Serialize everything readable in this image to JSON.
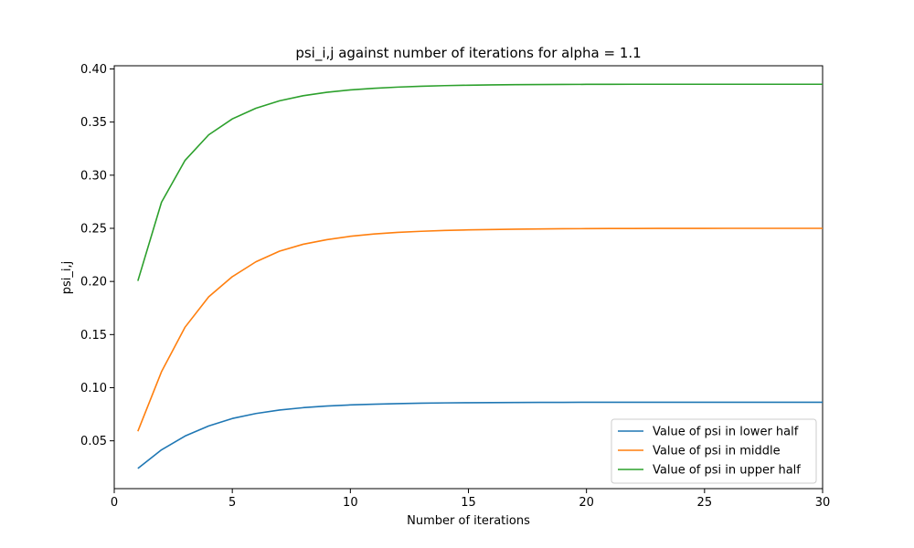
{
  "chart_data": {
    "type": "line",
    "title": "psi_i,j against number of iterations for alpha = 1.1",
    "xlabel": "Number of iterations",
    "ylabel": "psi_i,j",
    "xlim": [
      0,
      30
    ],
    "ylim": [
      0.005,
      0.403
    ],
    "x_ticks": [
      0,
      5,
      10,
      15,
      20,
      25,
      30
    ],
    "y_ticks": [
      0.05,
      0.1,
      0.15,
      0.2,
      0.25,
      0.3,
      0.35,
      0.4
    ],
    "grid": false,
    "legend_position": "lower-right",
    "x": [
      1,
      2,
      3,
      4,
      5,
      6,
      7,
      8,
      9,
      10,
      11,
      12,
      13,
      14,
      15,
      16,
      17,
      18,
      19,
      20,
      21,
      22,
      23,
      24,
      25,
      26,
      27,
      28,
      29,
      30
    ],
    "series": [
      {
        "name": "Value of psi in lower half",
        "color": "#1f77b4",
        "values": [
          0.024,
          0.0415,
          0.0545,
          0.064,
          0.071,
          0.0757,
          0.079,
          0.0812,
          0.0827,
          0.0838,
          0.0845,
          0.085,
          0.0854,
          0.0857,
          0.0859,
          0.086,
          0.0861,
          0.0862,
          0.0862,
          0.0863,
          0.0863,
          0.0863,
          0.0863,
          0.0863,
          0.0863,
          0.0863,
          0.0863,
          0.0863,
          0.0863,
          0.0863
        ]
      },
      {
        "name": "Value of psi in middle",
        "color": "#ff7f0e",
        "values": [
          0.059,
          0.115,
          0.157,
          0.1855,
          0.2045,
          0.2185,
          0.2285,
          0.235,
          0.2393,
          0.2425,
          0.2447,
          0.2462,
          0.2472,
          0.248,
          0.2485,
          0.2489,
          0.2492,
          0.2494,
          0.2496,
          0.2497,
          0.2498,
          0.2498,
          0.2499,
          0.2499,
          0.2499,
          0.25,
          0.25,
          0.25,
          0.25,
          0.25
        ]
      },
      {
        "name": "Value of psi in upper half",
        "color": "#2ca02c",
        "values": [
          0.2005,
          0.2745,
          0.314,
          0.338,
          0.353,
          0.363,
          0.37,
          0.3748,
          0.378,
          0.3803,
          0.3818,
          0.3829,
          0.3837,
          0.3843,
          0.3847,
          0.385,
          0.3852,
          0.3853,
          0.3854,
          0.3855,
          0.3855,
          0.3856,
          0.3856,
          0.3856,
          0.3856,
          0.3856,
          0.3856,
          0.3856,
          0.3856,
          0.3856
        ]
      }
    ]
  }
}
